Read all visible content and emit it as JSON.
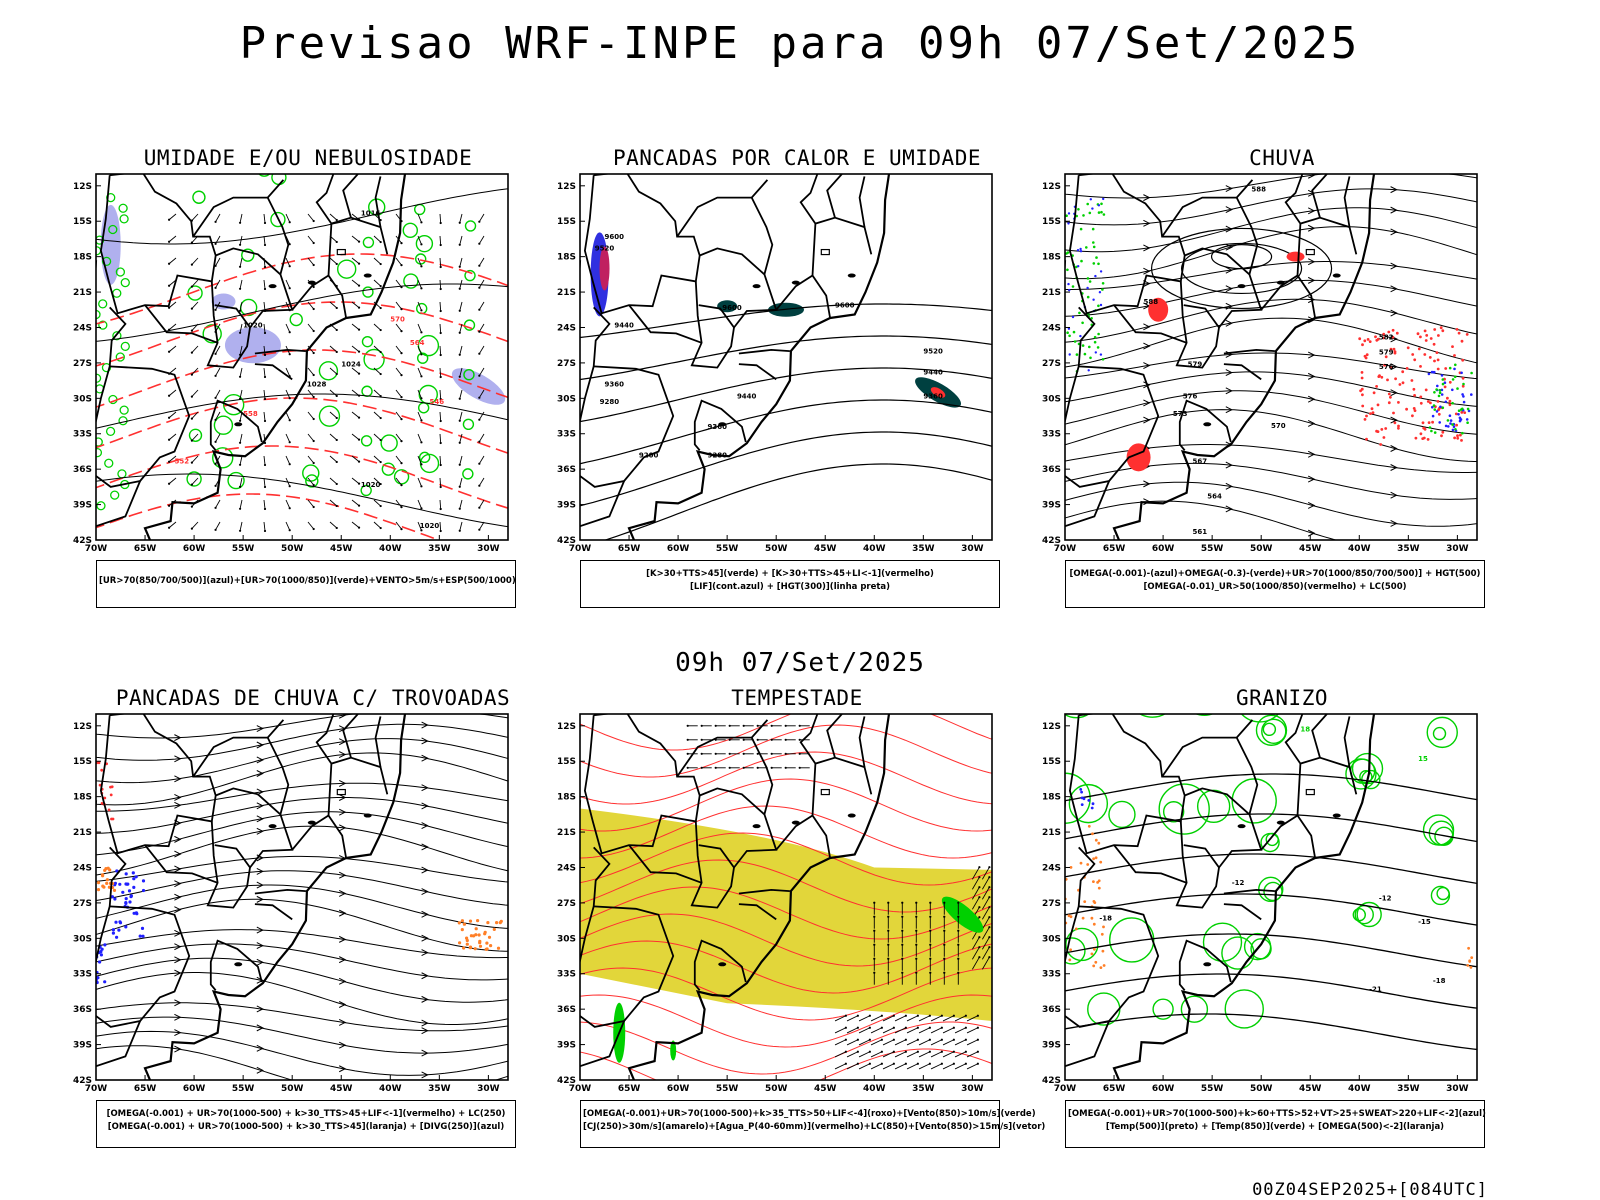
{
  "header": {
    "title": "Previsao WRF-INPE  para 09h 07/Set/2025"
  },
  "middle": {
    "title": "09h 07/Set/2025"
  },
  "footer": {
    "run": "00Z04SEP2025+[084UTC]"
  },
  "axes": {
    "lat_labels": [
      "12S",
      "15S",
      "18S",
      "21S",
      "24S",
      "27S",
      "30S",
      "33S",
      "36S",
      "39S",
      "42S"
    ],
    "lon_labels": [
      "70W",
      "65W",
      "60W",
      "55W",
      "50W",
      "45W",
      "40W",
      "35W",
      "30W"
    ]
  },
  "panels": [
    {
      "title": "UMIDADE E/OU NEBULOSIDADE",
      "legend": [
        "[UR>70(850/700/500)](azul)+[UR>70(1000/850)](verde)+VENTO>5m/s+ESP(500/1000)"
      ],
      "contour_labels": [
        "1016",
        "1020",
        "1024",
        "1028",
        "570",
        "564",
        "558",
        "552",
        "546"
      ]
    },
    {
      "title": "PANCADAS POR CALOR E UMIDADE",
      "legend": [
        "[K>30+TTS>45](verde) + [K>30+TTS>45+LI<-1](vermelho)",
        "[LIF](cont.azul) + [HGT(300)](linha preta)"
      ],
      "contour_labels": [
        "9600",
        "9520",
        "9440",
        "9360",
        "9280",
        "9200"
      ]
    },
    {
      "title": "CHUVA",
      "legend": [
        "[OMEGA(-0.001)-(azul)+OMEGA(-0.3)-(verde)+UR>70(1000/850/700/500)] + HGT(500)",
        "[OMEGA(-0.01)_UR>50(1000/850)(vermelho) + LC(500)"
      ],
      "contour_labels": [
        "588",
        "582",
        "579",
        "576",
        "573",
        "570",
        "567",
        "564",
        "561"
      ]
    },
    {
      "title": "PANCADAS DE CHUVA C/ TROVOADAS",
      "legend": [
        "[OMEGA(-0.001) + UR>70(1000-500) + k>30_TTS>45+LIF<-1](vermelho) + LC(250)",
        "[OMEGA(-0.001) + UR>70(1000-500) + k>30_TTS>45](laranja) + [DIVG(250)](azul)"
      ],
      "contour_labels": []
    },
    {
      "title": "TEMPESTADE",
      "legend": [
        "[OMEGA(-0.001)+UR>70(1000-500)+k>35_TTS>50+LIF<-4](roxo)+[Vento(850)>10m/s](verde)",
        "[CJ(250)>30m/s](amarelo)+[Agua_P(40-60mm)](vermelho)+LC(850)+[Vento(850)>15m/s](vetor)"
      ],
      "contour_labels": []
    },
    {
      "title": "GRANIZO",
      "legend": [
        "[OMEGA(-0.001)+UR>70(1000-500)+k>60+TTS>52+VT>25+SWEAT>220+LIF<-2](azul)",
        "[Temp(500)](preto) + [Temp(850)](verde) + [OMEGA(500)<-2](laranja)"
      ],
      "contour_labels": [
        "-12",
        "-15",
        "-18",
        "-21",
        "12",
        "15",
        "18"
      ]
    }
  ],
  "colors": {
    "humidity_high": "#b0b0ee",
    "humidity_low": "#00d000",
    "thickness": "#ff3030",
    "storm_green": "#004040",
    "rain_red": "#ff3030",
    "jet_yellow": "#e2d63a",
    "hail_blue": "#2020ff",
    "thunder_orange": "#ff7f27"
  }
}
